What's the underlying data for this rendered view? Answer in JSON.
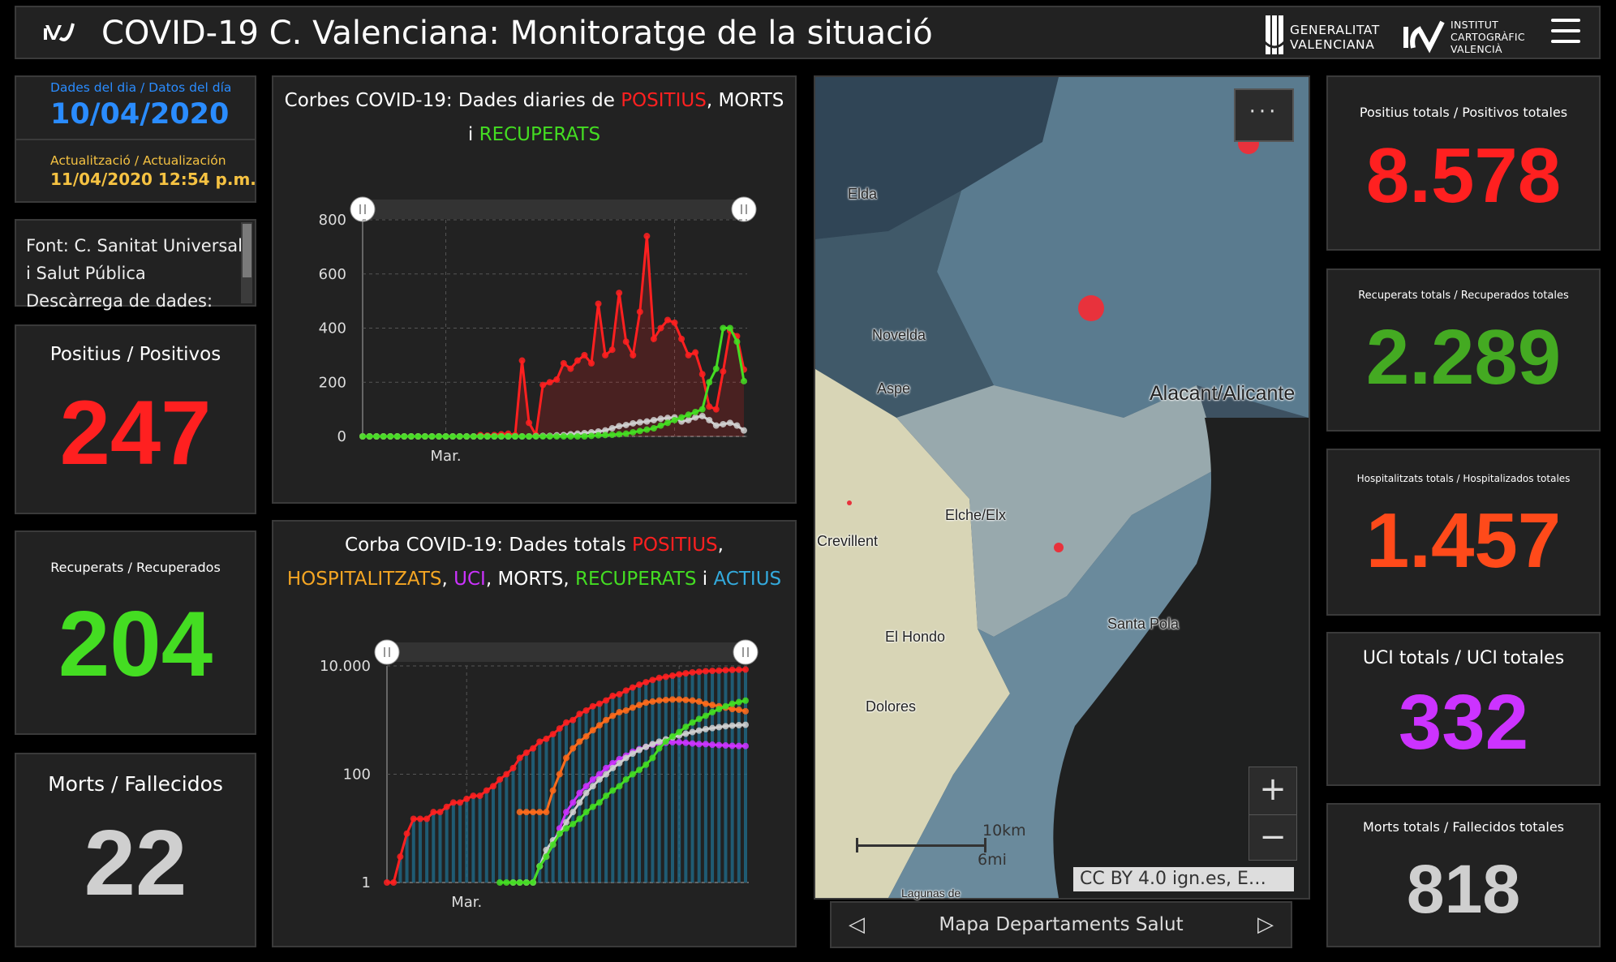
{
  "header": {
    "title": "COVID-19 C. Valenciana: Monitoratge de la situació",
    "gva_line1": "GENERALITAT",
    "gva_line2": "VALENCIANA",
    "icv_line1": "INSTITUT",
    "icv_line2": "CARTOGRÀFIC",
    "icv_line3": "VALENCIÀ",
    "logo_icon": "icv-logo-icon",
    "menu_icon": "hamburger-menu-icon"
  },
  "dates": {
    "day_label": "Dades del dia / Datos del día",
    "day_value": "10/04/2020",
    "update_label": "Actualització / Actualización",
    "update_value": "11/04/2020 12:54 p.m."
  },
  "source": {
    "lines": [
      "Font: C. Sanitat Universal",
      "i Salut Pública",
      "Descàrrega de dades:"
    ]
  },
  "daily_kpis": {
    "positive_label": "Positius / Positivos",
    "positive_value": "247",
    "recovered_label": "Recuperats / Recuperados",
    "recovered_value": "204",
    "deaths_label": "Morts / Fallecidos",
    "deaths_value": "22"
  },
  "total_kpis": {
    "positive_label": "Positius totals / Positivos totales",
    "positive_value": "8.578",
    "recovered_label": "Recuperats totals / Recuperados totales",
    "recovered_value": "2.289",
    "hospital_label": "Hospitalitzats totals / Hospitalizados totales",
    "hospital_value": "1.457",
    "icu_label": "UCI totals / UCI totales",
    "icu_value": "332",
    "deaths_label": "Morts totals / Fallecidos totales",
    "deaths_value": "818"
  },
  "colors": {
    "positive": "#ff2020",
    "recovered": "#44dd22",
    "deaths": "#cfcfcf",
    "hospital": "#ff6a1a",
    "icu": "#cc33ff",
    "active": "#33aadd",
    "hospital_text": "#f5a623",
    "date_blue": "#2a8cff",
    "update_gold": "#f5c242"
  },
  "chart1": {
    "title_prefix": "Corbes COVID-19: Dades diaries de ",
    "title_pos": "POSITIUS",
    "title_sep": ", ",
    "title_deaths": "MORTS",
    "title_and": "i ",
    "title_rec": "RECUPERATS"
  },
  "chart2": {
    "title_prefix": "Corba COVID-19: Dades totals ",
    "title_pos": "POSITIUS",
    "title_hosp": "HOSPITALITZATS",
    "title_icu": "UCI",
    "title_deaths": "MORTS",
    "title_rec": "RECUPERATS",
    "title_and": " i ",
    "title_active": "ACTIUS",
    "comma": ", "
  },
  "chart_data": [
    {
      "type": "line",
      "ylim": [
        0,
        800
      ],
      "yticks": [
        0,
        200,
        400,
        600,
        800
      ],
      "xtick_label": "Mar.",
      "xtick_index": 12,
      "series": [
        {
          "name": "POSITIUS",
          "color": "#ff2020",
          "values": [
            0,
            0,
            0,
            0,
            0,
            0,
            0,
            0,
            0,
            0,
            0,
            0,
            0,
            0,
            0,
            0,
            0,
            5,
            3,
            5,
            8,
            10,
            5,
            280,
            50,
            5,
            190,
            200,
            210,
            270,
            250,
            280,
            300,
            270,
            490,
            300,
            320,
            530,
            350,
            300,
            460,
            740,
            360,
            400,
            430,
            420,
            360,
            300,
            310,
            230,
            110,
            100,
            240,
            390,
            370,
            247
          ]
        },
        {
          "name": "MORTS",
          "color": "#cfcfcf",
          "values": [
            0,
            0,
            0,
            0,
            0,
            0,
            0,
            0,
            0,
            0,
            0,
            0,
            0,
            0,
            0,
            0,
            0,
            0,
            0,
            0,
            0,
            0,
            0,
            0,
            0,
            1,
            2,
            2,
            4,
            5,
            8,
            10,
            12,
            15,
            18,
            22,
            30,
            38,
            42,
            48,
            52,
            55,
            60,
            65,
            68,
            70,
            55,
            60,
            70,
            75,
            60,
            40,
            45,
            50,
            40,
            22
          ]
        },
        {
          "name": "RECUPERATS",
          "color": "#44dd22",
          "values": [
            0,
            0,
            0,
            0,
            0,
            0,
            0,
            0,
            0,
            0,
            0,
            0,
            0,
            0,
            0,
            0,
            0,
            0,
            0,
            0,
            0,
            0,
            0,
            0,
            0,
            0,
            0,
            0,
            0,
            0,
            0,
            0,
            0,
            2,
            4,
            5,
            6,
            8,
            10,
            15,
            20,
            25,
            30,
            40,
            50,
            60,
            70,
            80,
            90,
            100,
            200,
            250,
            400,
            400,
            350,
            204
          ]
        }
      ]
    },
    {
      "type": "line",
      "scale": "log",
      "ylim": [
        1,
        10000
      ],
      "yticks": [
        1,
        100,
        10000
      ],
      "ytick_labels": [
        "1",
        "100",
        "10.000"
      ],
      "xtick_label": "Mar.",
      "xtick_index": 12,
      "series": [
        {
          "name": "POSITIUS",
          "color": "#ff2020",
          "values": [
            1,
            1,
            3,
            8,
            15,
            15,
            15,
            20,
            20,
            25,
            30,
            30,
            35,
            40,
            40,
            50,
            60,
            80,
            100,
            130,
            200,
            250,
            300,
            400,
            450,
            550,
            700,
            900,
            1000,
            1300,
            1500,
            1800,
            2000,
            2300,
            2800,
            3000,
            3500,
            4000,
            4500,
            5000,
            5500,
            6000,
            6300,
            6600,
            7000,
            7300,
            7600,
            7800,
            8000,
            8100,
            8200,
            8350,
            8450,
            8500,
            8578
          ]
        },
        {
          "name": "HOSPITALITZATS",
          "color": "#ff6a1a",
          "values": [
            null,
            null,
            null,
            null,
            null,
            null,
            null,
            null,
            null,
            null,
            null,
            null,
            null,
            null,
            null,
            null,
            null,
            null,
            null,
            null,
            20,
            20,
            20,
            20,
            20,
            50,
            100,
            200,
            300,
            400,
            500,
            650,
            800,
            1000,
            1200,
            1400,
            1500,
            1700,
            1900,
            2100,
            2200,
            2300,
            2350,
            2400,
            2400,
            2350,
            2300,
            2200,
            2000,
            1900,
            1800,
            1700,
            1600,
            1550,
            1457
          ]
        },
        {
          "name": "UCI",
          "color": "#cc33ff",
          "values": [
            null,
            null,
            null,
            null,
            null,
            null,
            null,
            null,
            null,
            null,
            null,
            null,
            null,
            null,
            null,
            null,
            null,
            null,
            null,
            null,
            null,
            null,
            null,
            2,
            3,
            5,
            10,
            20,
            30,
            45,
            60,
            80,
            100,
            130,
            160,
            190,
            220,
            260,
            290,
            320,
            350,
            370,
            380,
            390,
            390,
            380,
            370,
            360,
            360,
            350,
            345,
            340,
            335,
            333,
            332
          ]
        },
        {
          "name": "MORTS",
          "color": "#cfcfcf",
          "values": [
            null,
            null,
            null,
            null,
            null,
            null,
            null,
            null,
            null,
            null,
            null,
            null,
            null,
            null,
            null,
            null,
            null,
            null,
            null,
            1,
            1,
            1,
            1,
            2,
            4,
            6,
            8,
            13,
            20,
            30,
            45,
            60,
            80,
            100,
            130,
            160,
            200,
            240,
            280,
            320,
            360,
            400,
            440,
            480,
            520,
            560,
            600,
            640,
            680,
            710,
            740,
            770,
            790,
            805,
            818
          ]
        },
        {
          "name": "RECUPERATS",
          "color": "#44dd22",
          "values": [
            null,
            null,
            null,
            null,
            null,
            null,
            null,
            null,
            null,
            null,
            null,
            null,
            null,
            null,
            null,
            null,
            null,
            1,
            1,
            1,
            1,
            1,
            1,
            2,
            3,
            5,
            8,
            10,
            12,
            15,
            20,
            25,
            30,
            40,
            50,
            60,
            80,
            100,
            120,
            150,
            200,
            300,
            400,
            500,
            600,
            750,
            900,
            1050,
            1200,
            1400,
            1600,
            1800,
            2000,
            2150,
            2289
          ]
        }
      ]
    }
  ],
  "map": {
    "labels": [
      "Elda",
      "Novelda",
      "Aspe",
      "Alacant/Alicante",
      "Crevillent",
      "Elche/Elx",
      "El Hondo",
      "Santa Pola",
      "Dolores",
      "Lagunas de"
    ],
    "more_glyph": "···",
    "zoom_in": "+",
    "zoom_out": "−",
    "scale_km": "10km",
    "scale_mi": "6mi",
    "attribution": "CC BY 4.0 ign.es, E…",
    "nav_label": "Mapa Departaments Salut"
  }
}
